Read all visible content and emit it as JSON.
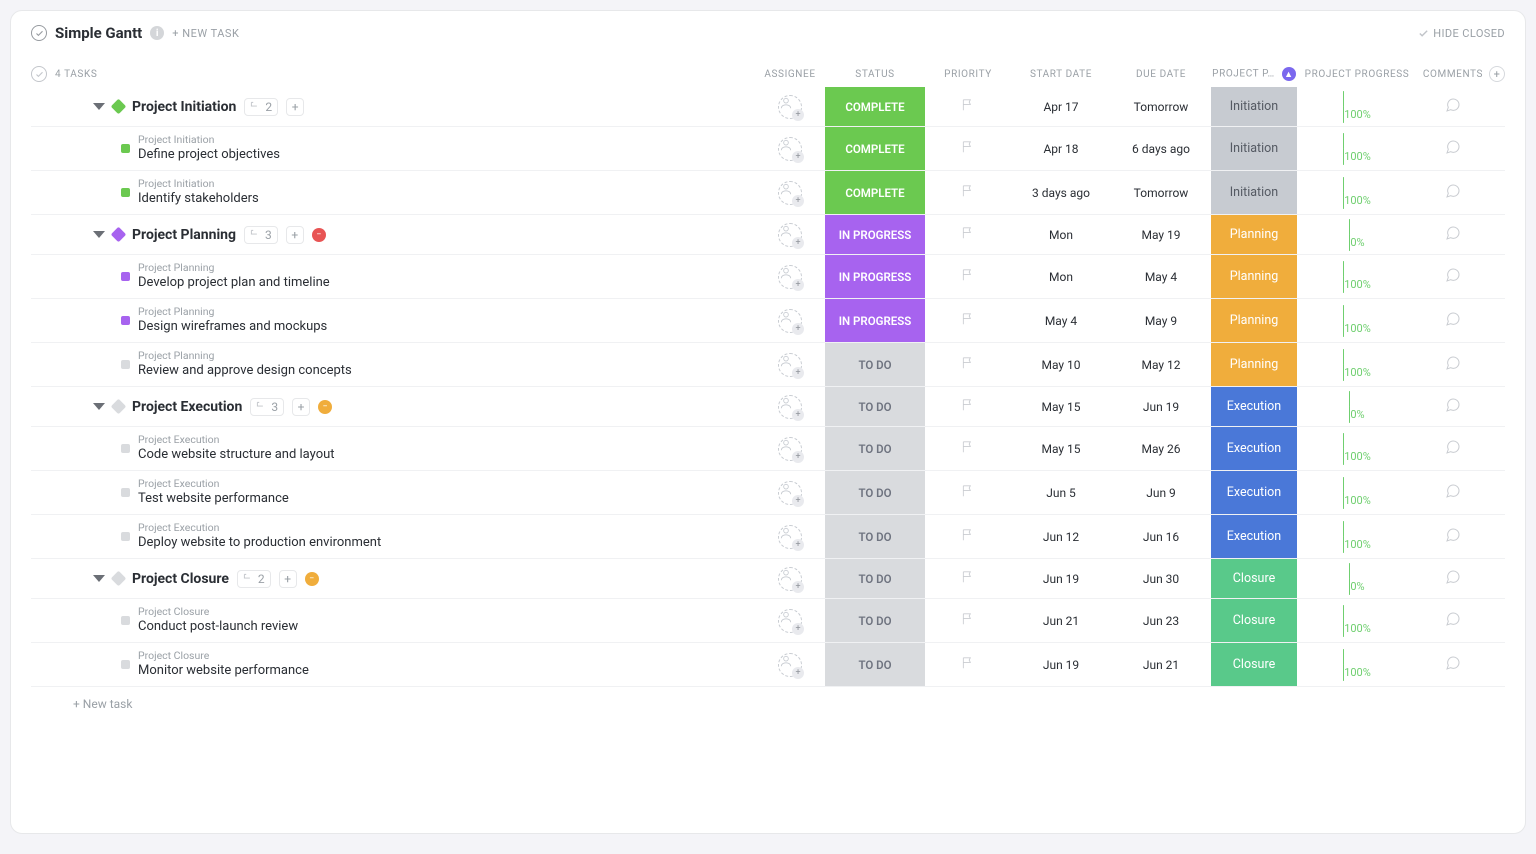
{
  "header": {
    "title": "Simple Gantt",
    "new_task_btn": "+ NEW TASK",
    "hide_closed": "HIDE CLOSED",
    "task_count_label": "4 TASKS"
  },
  "columns": {
    "assignee": "ASSIGNEE",
    "status": "STATUS",
    "priority": "PRIORITY",
    "start_date": "START DATE",
    "due_date": "DUE DATE",
    "phase": "PROJECT P…",
    "progress": "PROJECT PROGRESS",
    "comments": "COMMENTS"
  },
  "status_styles": {
    "COMPLETE": {
      "bg": "#6bc950",
      "fg": "#ffffff"
    },
    "IN PROGRESS": {
      "bg": "#a763ef",
      "fg": "#ffffff"
    },
    "TO DO": {
      "bg": "#d9dbde",
      "fg": "#6f7480"
    }
  },
  "phase_styles": {
    "Initiation": {
      "bg": "#c7cbd1",
      "fg": "#555a63"
    },
    "Planning": {
      "bg": "#f0ad3c",
      "fg": "#ffffff"
    },
    "Execution": {
      "bg": "#4a78d8",
      "fg": "#ffffff"
    },
    "Closure": {
      "bg": "#59c98a",
      "fg": "#ffffff"
    }
  },
  "progress_colors": {
    "border": "#6fcf6f",
    "fill": "#6fcf6f",
    "text": "#6fcf6f"
  },
  "groups": [
    {
      "name": "Project Initiation",
      "diamond_color": "#6bc950",
      "count": "2",
      "badge": null,
      "status": "COMPLETE",
      "start": "Apr 17",
      "due": "Tomorrow",
      "phase": "Initiation",
      "progress": 100,
      "tasks": [
        {
          "crumb": "Project Initiation",
          "name": "Define project objectives",
          "square": "#6bc950",
          "status": "COMPLETE",
          "start": "Apr 18",
          "due": "6 days ago",
          "phase": "Initiation",
          "progress": 100
        },
        {
          "crumb": "Project Initiation",
          "name": "Identify stakeholders",
          "square": "#6bc950",
          "status": "COMPLETE",
          "start": "3 days ago",
          "due": "Tomorrow",
          "phase": "Initiation",
          "progress": 100
        }
      ]
    },
    {
      "name": "Project Planning",
      "diamond_color": "#a763ef",
      "count": "3",
      "badge": {
        "color": "#e85454",
        "glyph": "−"
      },
      "status": "IN PROGRESS",
      "start": "Mon",
      "due": "May 19",
      "phase": "Planning",
      "progress": 0,
      "tasks": [
        {
          "crumb": "Project Planning",
          "name": "Develop project plan and timeline",
          "square": "#a763ef",
          "status": "IN PROGRESS",
          "start": "Mon",
          "due": "May 4",
          "phase": "Planning",
          "progress": 100
        },
        {
          "crumb": "Project Planning",
          "name": "Design wireframes and mockups",
          "square": "#a763ef",
          "status": "IN PROGRESS",
          "start": "May 4",
          "due": "May 9",
          "phase": "Planning",
          "progress": 100
        },
        {
          "crumb": "Project Planning",
          "name": "Review and approve design concepts",
          "square": "#d9dbde",
          "status": "TO DO",
          "start": "May 10",
          "due": "May 12",
          "phase": "Planning",
          "progress": 100
        }
      ]
    },
    {
      "name": "Project Execution",
      "diamond_color": "#d9dbde",
      "count": "3",
      "badge": {
        "color": "#f0ad3c",
        "glyph": "−"
      },
      "status": "TO DO",
      "start": "May 15",
      "due": "Jun 19",
      "phase": "Execution",
      "progress": 0,
      "tasks": [
        {
          "crumb": "Project Execution",
          "name": "Code website structure and layout",
          "square": "#d9dbde",
          "status": "TO DO",
          "start": "May 15",
          "due": "May 26",
          "phase": "Execution",
          "progress": 100
        },
        {
          "crumb": "Project Execution",
          "name": "Test website performance",
          "square": "#d9dbde",
          "status": "TO DO",
          "start": "Jun 5",
          "due": "Jun 9",
          "phase": "Execution",
          "progress": 100
        },
        {
          "crumb": "Project Execution",
          "name": "Deploy website to production environment",
          "square": "#d9dbde",
          "status": "TO DO",
          "start": "Jun 12",
          "due": "Jun 16",
          "phase": "Execution",
          "progress": 100
        }
      ]
    },
    {
      "name": "Project Closure",
      "diamond_color": "#d9dbde",
      "count": "2",
      "badge": {
        "color": "#f0ad3c",
        "glyph": "−"
      },
      "status": "TO DO",
      "start": "Jun 19",
      "due": "Jun 30",
      "phase": "Closure",
      "progress": 0,
      "tasks": [
        {
          "crumb": "Project Closure",
          "name": "Conduct post-launch review",
          "square": "#d9dbde",
          "status": "TO DO",
          "start": "Jun 21",
          "due": "Jun 23",
          "phase": "Closure",
          "progress": 100
        },
        {
          "crumb": "Project Closure",
          "name": "Monitor website performance",
          "square": "#d9dbde",
          "status": "TO DO",
          "start": "Jun 19",
          "due": "Jun 21",
          "phase": "Closure",
          "progress": 100
        }
      ]
    }
  ],
  "footer": {
    "new_task": "+ New task"
  }
}
